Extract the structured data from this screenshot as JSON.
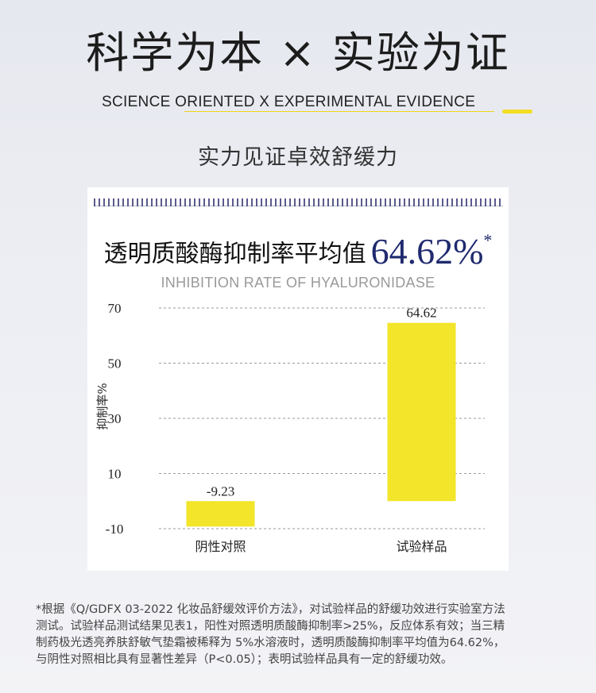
{
  "header": {
    "title": "科学为本 × 实验为证",
    "subtitle": "SCIENCE ORIENTED X EXPERIMENTAL EVIDENCE",
    "tagline": "实力见证卓效舒缓力"
  },
  "card": {
    "headline_label": "透明质酸酶抑制率平均值",
    "headline_value": "64.62%",
    "headline_star": "*",
    "english_subtitle": "INHIBITION RATE OF HYALURONIDASE"
  },
  "chart_data": {
    "type": "bar",
    "categories": [
      "阴性对照",
      "试验样品"
    ],
    "values": [
      -9.23,
      64.62
    ],
    "value_labels": [
      "-9.23",
      "64.62"
    ],
    "ylabel": "抑制率%",
    "yticks": [
      -10,
      10,
      30,
      50,
      70
    ],
    "ylim": [
      -10,
      70
    ],
    "grid": true,
    "bar_color": "#f2e52a"
  },
  "footnote": [
    "*根据《Q/GDFX 03-2022 化妆品舒缓效评价方法》，对试验样品的舒缓功效进行实验室方法",
    "测试。试验样品测试结果见表1，阳性对照透明质酸酶抑制率>25%，反应体系有效；当三精",
    "制药极光透亮养肤舒敏气垫霜被稀释为 5%水溶液时，透明质酸酶抑制率平均值为64.62%，",
    "与阴性对照相比具有显著性差异（P<0.05）；表明试验样品具有一定的舒缓功效。"
  ]
}
